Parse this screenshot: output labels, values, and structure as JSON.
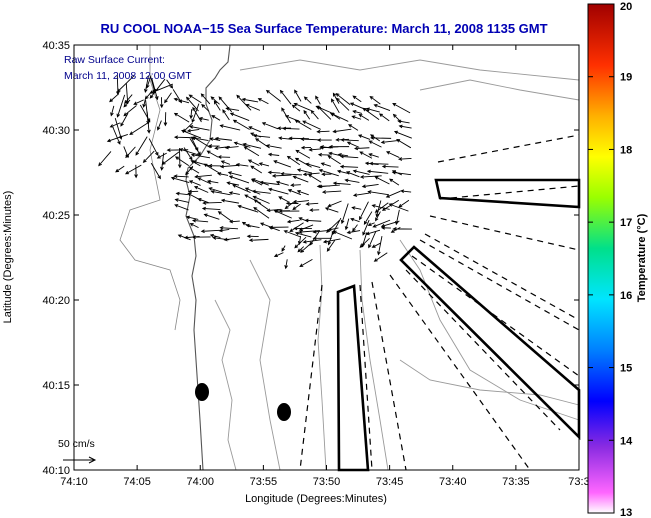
{
  "chart_data": {
    "type": "map",
    "title": "RU COOL  NOAA−15  Sea Surface Temperature:  March 11, 2008 1135 GMT",
    "xlabel": "Longitude (Degrees:Minutes)",
    "ylabel": "Latitude (Degrees:Minutes)",
    "x_tick_labels": [
      "74:10",
      "74:05",
      "74:00",
      "73:55",
      "73:50",
      "73:45",
      "73:40",
      "73:35",
      "73:3"
    ],
    "y_tick_labels": [
      "40:35",
      "40:30",
      "40:25",
      "40:20",
      "40:15",
      "40:10"
    ],
    "xlim_minutes_west": [
      10,
      -30
    ],
    "ylim_minutes_north": [
      10,
      35
    ],
    "annotation": {
      "line1": "Raw Surface Current:",
      "line2": "March 11, 2008 12:00 GMT"
    },
    "scale_label": "50 cm/s",
    "colorbar": {
      "label": "Temperature (°C)",
      "min": 13,
      "max": 20,
      "tick_labels": [
        "20",
        "19",
        "18",
        "17",
        "16",
        "15",
        "14",
        "13"
      ]
    }
  },
  "colors": {
    "title": "#0000b4",
    "annotation": "#00008b",
    "axis": "#000000",
    "contour": "#9a9a9a",
    "arrow": "#000000"
  }
}
